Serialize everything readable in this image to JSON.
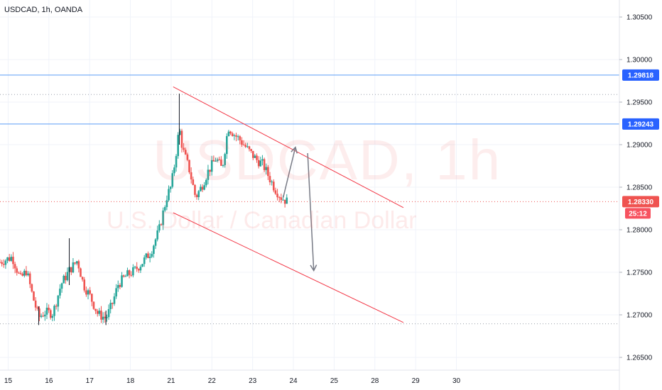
{
  "header": {
    "symbol": "USDCAD, 1h, OANDA"
  },
  "watermark": {
    "symbol": "USDCAD, 1h",
    "description": "U.S. Dollar / Canadian Dollar"
  },
  "colors": {
    "up": "#26a69a",
    "down": "#ef5350",
    "hline": "#5b9cf6",
    "channel": "#f23645",
    "arrow": "#787b86",
    "dotted": "#9aa0aa"
  },
  "chart_data": {
    "type": "candlestick",
    "ylim": [
      1.2635,
      1.307
    ],
    "xlim": [
      14.8,
      30.0
    ],
    "y_ticks": [
      "1.26500",
      "1.27000",
      "1.27500",
      "1.28000",
      "1.28500",
      "1.29000",
      "1.29500",
      "1.30000",
      "1.30500"
    ],
    "x_ticks": [
      "15",
      "16",
      "17",
      "18",
      "21",
      "22",
      "23",
      "24",
      "25",
      "28",
      "29",
      "30"
    ],
    "x_tick_positions": [
      15,
      16,
      17,
      18,
      19,
      20,
      21,
      22,
      23,
      24,
      25,
      26
    ],
    "horizontal_levels": [
      {
        "value": 1.29818,
        "label": "1.29818",
        "style": "solid"
      },
      {
        "value": 1.29243,
        "label": "1.29243",
        "style": "solid"
      },
      {
        "value": 1.2959,
        "label": "",
        "style": "dotted"
      },
      {
        "value": 1.26895,
        "label": "",
        "style": "dotted"
      }
    ],
    "current_price": {
      "value": 1.2833,
      "label": "1.28330",
      "countdown": "25:12"
    },
    "channel": {
      "upper": [
        [
          19.05,
          1.2968
        ],
        [
          24.7,
          1.2826
        ]
      ],
      "lower": [
        [
          19.05,
          1.282
        ],
        [
          24.7,
          1.2691
        ]
      ]
    },
    "arrows": [
      {
        "from": [
          21.75,
          1.2838
        ],
        "to": [
          22.05,
          1.2897
        ]
      },
      {
        "from": [
          22.35,
          1.289
        ],
        "to": [
          22.5,
          1.2752
        ]
      }
    ],
    "path": [
      [
        14.8,
        1.2762
      ],
      [
        15.1,
        1.2768
      ],
      [
        15.3,
        1.2742
      ],
      [
        15.45,
        1.2752
      ],
      [
        15.6,
        1.2722
      ],
      [
        15.75,
        1.2697
      ],
      [
        15.9,
        1.2703
      ],
      [
        16.1,
        1.2702
      ],
      [
        16.3,
        1.2736
      ],
      [
        16.5,
        1.2752
      ],
      [
        16.7,
        1.2764
      ],
      [
        16.85,
        1.2735
      ],
      [
        17.0,
        1.2723
      ],
      [
        17.2,
        1.2701
      ],
      [
        17.4,
        1.2696
      ],
      [
        17.55,
        1.2712
      ],
      [
        17.7,
        1.2736
      ],
      [
        17.9,
        1.2746
      ],
      [
        18.1,
        1.2752
      ],
      [
        18.3,
        1.2762
      ],
      [
        18.5,
        1.2774
      ],
      [
        18.7,
        1.2799
      ],
      [
        18.9,
        1.284
      ],
      [
        19.0,
        1.2851
      ],
      [
        19.1,
        1.2882
      ],
      [
        19.2,
        1.292
      ],
      [
        19.28,
        1.2895
      ],
      [
        19.45,
        1.287
      ],
      [
        19.6,
        1.2838
      ],
      [
        19.75,
        1.2851
      ],
      [
        19.9,
        1.2868
      ],
      [
        20.1,
        1.2884
      ],
      [
        20.25,
        1.2871
      ],
      [
        20.4,
        1.2921
      ],
      [
        20.55,
        1.2912
      ],
      [
        20.7,
        1.2905
      ],
      [
        20.9,
        1.2893
      ],
      [
        21.1,
        1.2882
      ],
      [
        21.25,
        1.2877
      ],
      [
        21.4,
        1.2862
      ],
      [
        21.55,
        1.2848
      ],
      [
        21.7,
        1.2838
      ],
      [
        21.85,
        1.2833
      ]
    ],
    "wicks": [
      {
        "x": 19.2,
        "low": 1.29,
        "high": 1.296
      },
      {
        "x": 16.5,
        "low": 1.2735,
        "high": 1.279
      },
      {
        "x": 15.75,
        "low": 1.2688,
        "high": 1.271
      },
      {
        "x": 17.4,
        "low": 1.2688,
        "high": 1.2705
      }
    ]
  }
}
